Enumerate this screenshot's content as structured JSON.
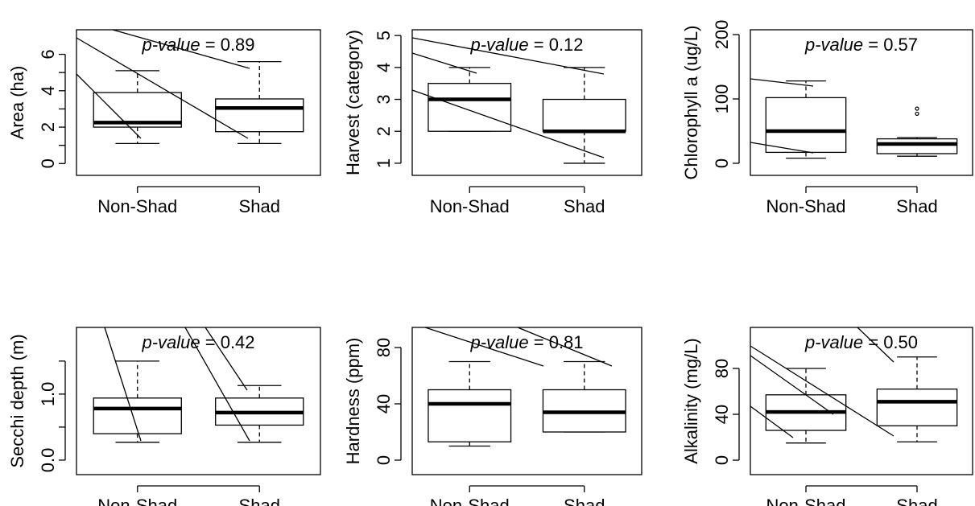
{
  "chart_data": [
    {
      "type": "box",
      "ylabel": "Area (ha)",
      "annotation": {
        "label": "p-value",
        "text": "= 0.89"
      },
      "categories": [
        "Non-Shad",
        "Shad"
      ],
      "boxes": [
        {
          "low": 1.1,
          "q1": 2.0,
          "median": 2.25,
          "q3": 3.9,
          "high": 5.1
        },
        {
          "low": 1.1,
          "q1": 1.75,
          "median": 3.05,
          "q3": 3.55,
          "high": 5.6
        }
      ],
      "ylim": [
        -0.65,
        7.35
      ],
      "yticks": [
        0,
        2,
        4,
        6
      ],
      "minor_yticks": [
        1,
        3,
        5
      ]
    },
    {
      "type": "box",
      "ylabel": "Harvest (category)",
      "annotation": {
        "label": "p-value",
        "text": "= 0.12"
      },
      "categories": [
        "Non-Shad",
        "Shad"
      ],
      "boxes": [
        {
          "low": 2,
          "q1": 2,
          "median": 3,
          "q3": 3.5,
          "high": 4
        },
        {
          "low": 1,
          "q1": 2,
          "median": 2,
          "q3": 3,
          "high": 4
        }
      ],
      "ylim": [
        0.62,
        5.18
      ],
      "yticks": [
        1,
        2,
        3,
        4,
        5
      ]
    },
    {
      "type": "box",
      "ylabel": "Chlorophyll a (ug/L)",
      "annotation": {
        "label": "p-value",
        "text": "= 0.57"
      },
      "categories": [
        "Non-Shad",
        "Shad"
      ],
      "boxes": [
        {
          "low": 8,
          "q1": 17,
          "median": 50,
          "q3": 102,
          "high": 128
        },
        {
          "low": 11,
          "q1": 15,
          "median": 30,
          "q3": 38,
          "high": 40,
          "outliers": [
            77,
            85
          ]
        }
      ],
      "ylim": [
        -18.75,
        207.5
      ],
      "yticks": [
        0,
        100,
        200
      ]
    },
    {
      "type": "box",
      "ylabel": "Secchi depth (m)",
      "annotation": {
        "label": "p-value",
        "text": "= 0.42"
      },
      "categories": [
        "Non-Shad",
        "Shad"
      ],
      "boxes": [
        {
          "low": 0.27,
          "q1": 0.4,
          "median": 0.78,
          "q3": 0.94,
          "high": 1.5
        },
        {
          "low": 0.27,
          "q1": 0.53,
          "median": 0.72,
          "q3": 0.94,
          "high": 1.13
        }
      ],
      "ylim": [
        -0.22,
        2.01
      ],
      "yticks": [
        {
          "value": 0,
          "label": "0.0"
        },
        {
          "value": 1,
          "label": "1.0"
        }
      ],
      "minor_yticks": [
        0.5,
        1.5
      ]
    },
    {
      "type": "box",
      "ylabel": "Hardness (ppm)",
      "annotation": {
        "label": "p-value",
        "text": "= 0.81"
      },
      "categories": [
        "Non-Shad",
        "Shad"
      ],
      "boxes": [
        {
          "low": 10,
          "q1": 13,
          "median": 40,
          "q3": 50,
          "high": 70
        },
        {
          "low": 20,
          "q1": 20,
          "median": 34,
          "q3": 50,
          "high": 70
        }
      ],
      "ylim": [
        -10.3,
        94.3
      ],
      "yticks": [
        0,
        40,
        80
      ]
    },
    {
      "type": "box",
      "ylabel": "Alkalinity (mg/L)",
      "annotation": {
        "label": "p-value",
        "text": "= 0.50"
      },
      "categories": [
        "Non-Shad",
        "Shad"
      ],
      "boxes": [
        {
          "low": 15,
          "q1": 26,
          "median": 42,
          "q3": 57,
          "high": 80
        },
        {
          "low": 16,
          "q1": 30,
          "median": 51,
          "q3": 62,
          "high": 90
        }
      ],
      "ylim": [
        -12.6,
        115.8
      ],
      "yticks": [
        0,
        40,
        80
      ]
    }
  ]
}
